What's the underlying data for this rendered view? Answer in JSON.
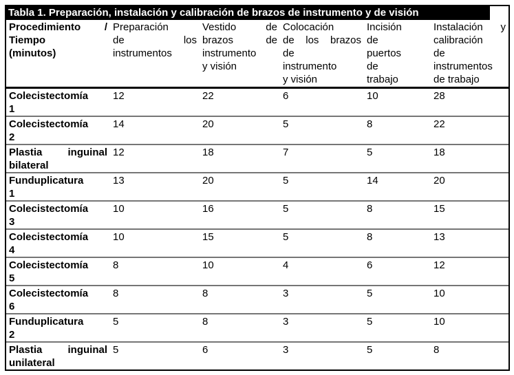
{
  "table": {
    "title": "Tabla 1. Preparación, instalación y calibración de brazos de instrumento y de visión",
    "corner_header": {
      "label": "Procedimiento / Tiempo (minutos)",
      "lines": [
        "Procedimiento /",
        "Tiempo",
        "(minutos)"
      ]
    },
    "column_headers": [
      {
        "label": "Preparación de los instrumentos",
        "lines": [
          "Preparación",
          "de los",
          "instrumentos"
        ]
      },
      {
        "label": "Vestido de brazos de instrumento y visión",
        "lines": [
          "Vestido de",
          "brazos de",
          "instrumento",
          "y visión"
        ]
      },
      {
        "label": "Colocación de los brazos de instrumento y visión",
        "lines": [
          "Colocación",
          "de los brazos",
          "de",
          "instrumento",
          "y visión"
        ]
      },
      {
        "label": "Incisión de puertos de trabajo",
        "lines": [
          "Incisión",
          "de",
          "puertos",
          "de",
          "trabajo"
        ]
      },
      {
        "label": "Instalación y calibración de instrumentos de trabajo",
        "lines": [
          "Instalación y",
          "calibración",
          "de",
          "instrumentos",
          "de trabajo"
        ]
      }
    ],
    "rows": [
      {
        "procedure": "Colecistectomía 1",
        "lines": [
          "Colecistectomía",
          "1"
        ],
        "values": [
          "12",
          "22",
          "6",
          "10",
          "28"
        ]
      },
      {
        "procedure": "Colecistectomía 2",
        "lines": [
          "Colecistectomía",
          "2"
        ],
        "values": [
          "14",
          "20",
          "5",
          "8",
          "22"
        ]
      },
      {
        "procedure": "Plastia inguinal bilateral",
        "lines": [
          "Plastia inguinal",
          "bilateral"
        ],
        "values": [
          "12",
          "18",
          "7",
          "5",
          "18"
        ]
      },
      {
        "procedure": "Funduplicatura 1",
        "lines": [
          "Funduplicatura",
          "1"
        ],
        "values": [
          "13",
          "20",
          "5",
          "14",
          "20"
        ]
      },
      {
        "procedure": "Colecistectomía 3",
        "lines": [
          "Colecistectomía",
          "3"
        ],
        "values": [
          "10",
          "16",
          "5",
          "8",
          "15"
        ]
      },
      {
        "procedure": "Colecistectomía 4",
        "lines": [
          "Colecistectomía",
          "4"
        ],
        "values": [
          "10",
          "15",
          "5",
          "8",
          "13"
        ]
      },
      {
        "procedure": "Colecistectomía 5",
        "lines": [
          "Colecistectomía",
          "5"
        ],
        "values": [
          "8",
          "10",
          "4",
          "6",
          "12"
        ]
      },
      {
        "procedure": "Colecistectomía 6",
        "lines": [
          "Colecistectomía",
          "6"
        ],
        "values": [
          "8",
          "8",
          "3",
          "5",
          "10"
        ]
      },
      {
        "procedure": "Funduplicatura 2",
        "lines": [
          "Funduplicatura",
          "2"
        ],
        "values": [
          "5",
          "8",
          "3",
          "5",
          "10"
        ]
      },
      {
        "procedure": "Plastia inguinal unilateral",
        "lines": [
          "Plastia inguinal",
          "unilateral"
        ],
        "values": [
          "5",
          "6",
          "3",
          "5",
          "8"
        ]
      }
    ],
    "colors": {
      "title_bg": "#000000",
      "title_text": "#ffffff",
      "outer_border": "#000000",
      "header_border": "#000000",
      "row_divider": "#757575",
      "text": "#000000",
      "background": "#ffffff"
    }
  }
}
